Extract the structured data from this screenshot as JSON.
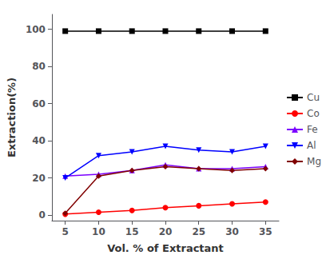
{
  "chart_data": {
    "type": "line",
    "x": [
      5,
      10,
      15,
      20,
      25,
      30,
      35
    ],
    "series": [
      {
        "name": "Cu",
        "color": "#000000",
        "marker": "square",
        "values": [
          99,
          99,
          99,
          99,
          99,
          99,
          99
        ]
      },
      {
        "name": "Co",
        "color": "#ff0000",
        "marker": "circle",
        "values": [
          0.5,
          1.5,
          2.5,
          4.0,
          5.0,
          6.0,
          7.0
        ]
      },
      {
        "name": "Fe",
        "color": "#7b00ff",
        "marker": "triangle",
        "values": [
          21,
          22,
          24,
          27,
          25,
          25,
          26
        ]
      },
      {
        "name": "Al",
        "color": "#0000ff",
        "marker": "triangle_down",
        "values": [
          20,
          32,
          34,
          37,
          35,
          34,
          37
        ]
      },
      {
        "name": "Mg",
        "color": "#800000",
        "marker": "diamond",
        "values": [
          1,
          21,
          24,
          26,
          25,
          24,
          25
        ]
      }
    ],
    "xlabel": "Vol. % of Extractant",
    "ylabel": "Extraction(%)",
    "xlim": [
      3,
      37
    ],
    "ylim": [
      -3,
      108
    ],
    "xticks": [
      5,
      10,
      15,
      20,
      25,
      30,
      35
    ],
    "yticks": [
      0,
      20,
      40,
      60,
      80,
      100
    ],
    "grid": false,
    "legend": "right"
  }
}
